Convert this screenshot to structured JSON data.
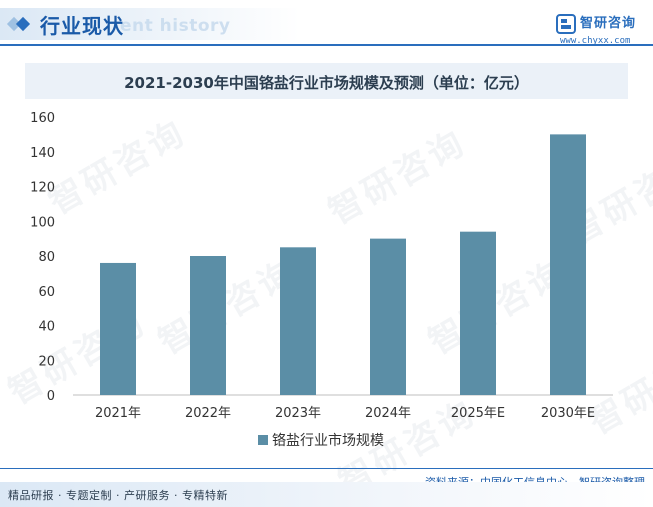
{
  "header": {
    "title": "行业现状",
    "background_text": "ent history",
    "brand": "智研咨询",
    "site": "www.chyxx.com"
  },
  "watermark": "智研咨询",
  "colors": {
    "accent": "#2a6ebd",
    "bar": "#5b8ea6"
  },
  "chart_data": {
    "type": "bar",
    "title": "2021-2030年中国铬盐行业市场规模及预测（单位：亿元）",
    "categories": [
      "2021年",
      "2022年",
      "2023年",
      "2024年",
      "2025年E",
      "2030年E"
    ],
    "series": [
      {
        "name": "铬盐行业市场规模",
        "values": [
          76,
          80,
          85,
          90,
          94,
          150
        ]
      }
    ],
    "xlabel": "",
    "ylabel": "",
    "ylim": [
      0,
      160
    ],
    "yticks": [
      0,
      20,
      40,
      60,
      80,
      100,
      120,
      140,
      160
    ],
    "grid": false,
    "legend": "bottom-center"
  },
  "footer": {
    "source": "资料来源：中国化工信息中心、智研咨询整理",
    "slogan": "精品研报 · 专题定制 · 产研服务 · 专精特新"
  }
}
